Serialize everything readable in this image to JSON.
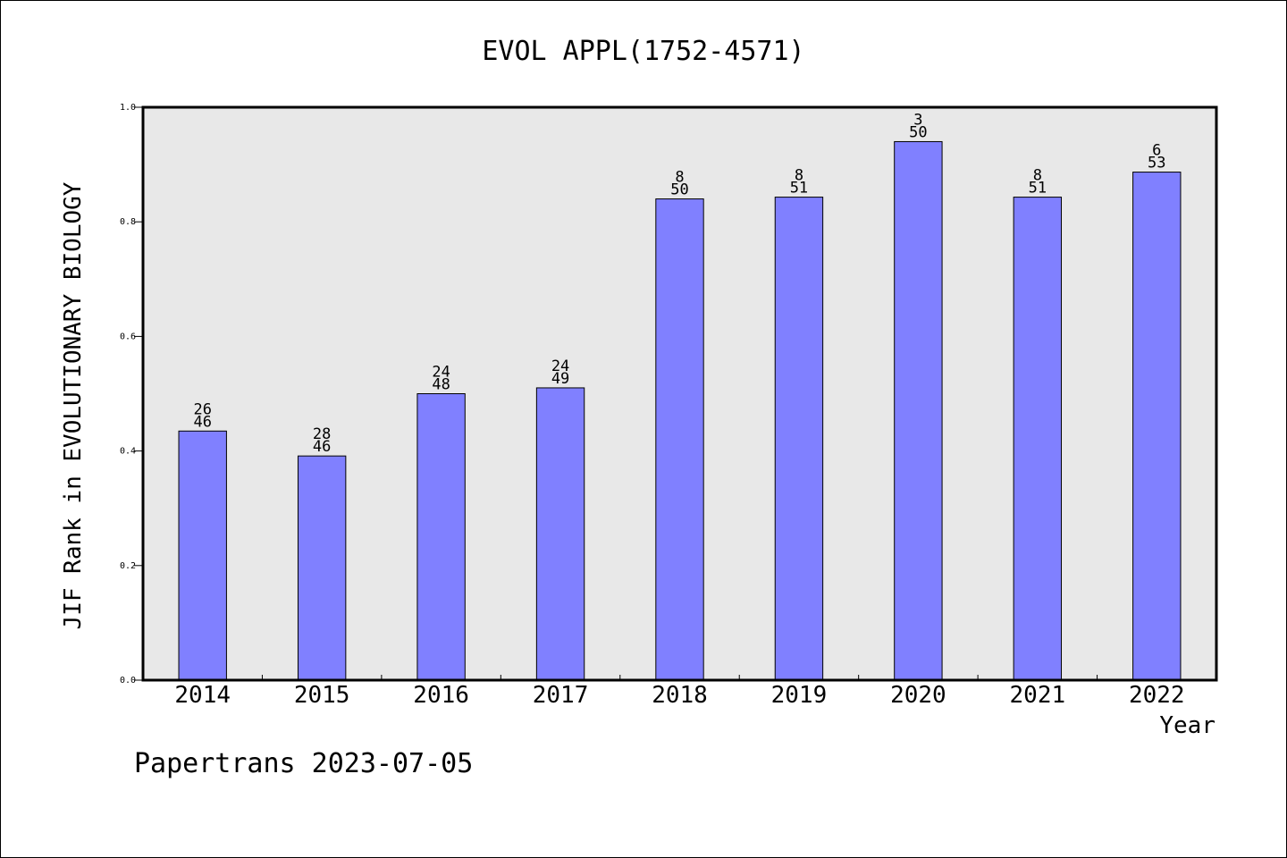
{
  "chart_data": {
    "type": "bar",
    "title": "EVOL APPL(1752-4571)",
    "xlabel": "Year",
    "ylabel": "JIF Rank in EVOLUTIONARY BIOLOGY",
    "ylim": [
      0,
      1.0
    ],
    "yticks": [
      "0.0",
      "0.2",
      "0.4",
      "0.6",
      "0.8",
      "1.0"
    ],
    "grid": false,
    "categories": [
      "2014",
      "2015",
      "2016",
      "2017",
      "2018",
      "2019",
      "2020",
      "2021",
      "2022"
    ],
    "values": [
      0.4348,
      0.3913,
      0.5,
      0.5102,
      0.84,
      0.8431,
      0.94,
      0.8431,
      0.8868
    ],
    "rank_labels": [
      {
        "rank": "26",
        "total": "46"
      },
      {
        "rank": "28",
        "total": "46"
      },
      {
        "rank": "24",
        "total": "48"
      },
      {
        "rank": "24",
        "total": "49"
      },
      {
        "rank": "8",
        "total": "50"
      },
      {
        "rank": "8",
        "total": "51"
      },
      {
        "rank": "3",
        "total": "50"
      },
      {
        "rank": "8",
        "total": "51"
      },
      {
        "rank": "6",
        "total": "53"
      }
    ],
    "colors": {
      "bar": "#8080ff",
      "plot_background": "#e8e8e8"
    }
  },
  "footer": {
    "text": "Papertrans 2023-07-05"
  }
}
